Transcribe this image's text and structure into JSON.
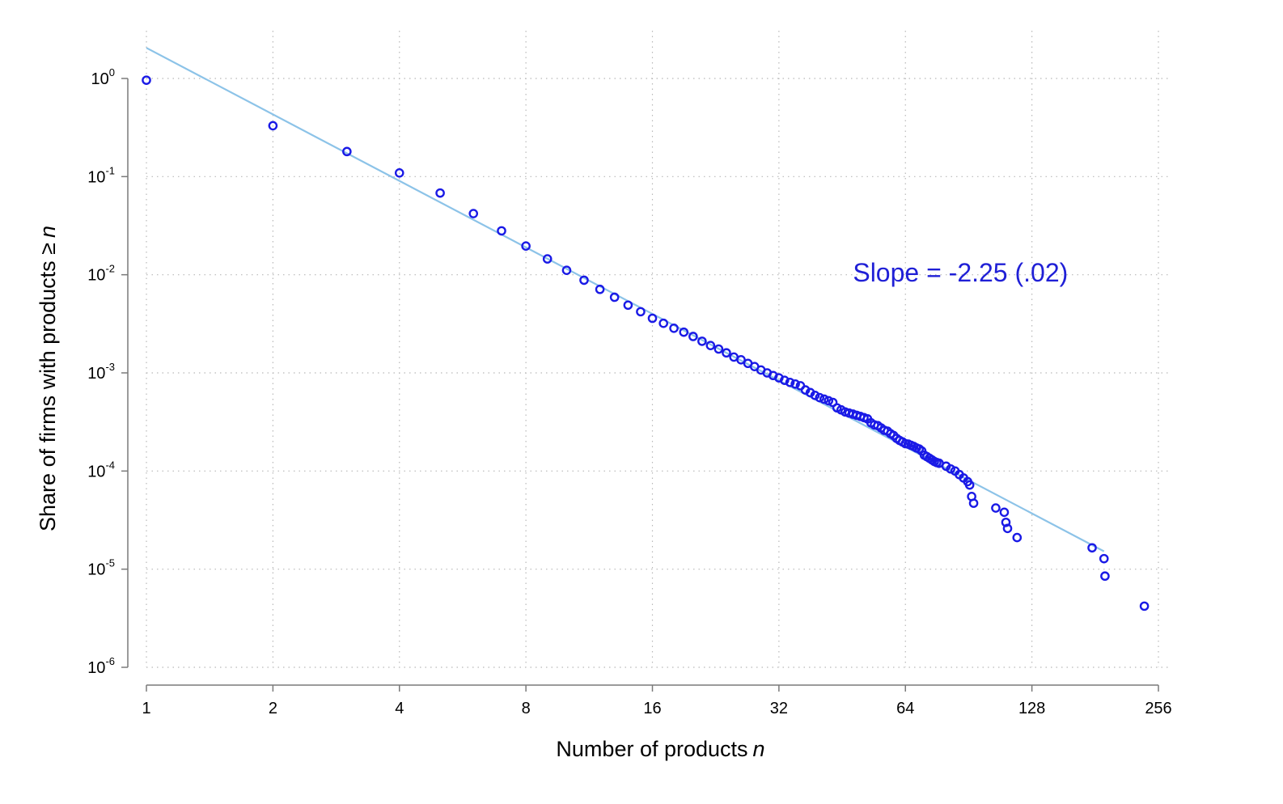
{
  "chart_data": {
    "type": "scatter",
    "xlabel": "Number of products",
    "xlabel_var": "n",
    "ylabel": "Share of firms with products ≥",
    "ylabel_var": "n",
    "x_scale": "log2",
    "y_scale": "log10",
    "xlim": [
      1,
      256
    ],
    "ylim": [
      1e-06,
      1
    ],
    "x_ticks": [
      1,
      2,
      4,
      8,
      16,
      32,
      64,
      128,
      256
    ],
    "x_tick_labels": [
      "1",
      "2",
      "4",
      "8",
      "16",
      "32",
      "64",
      "128",
      "256"
    ],
    "y_ticks": [
      1,
      0.1,
      0.01,
      0.001,
      0.0001,
      1e-05,
      1e-06
    ],
    "y_tick_labels": [
      {
        "base": "10",
        "exp": "0"
      },
      {
        "base": "10",
        "exp": "-1"
      },
      {
        "base": "10",
        "exp": "-2"
      },
      {
        "base": "10",
        "exp": "-3"
      },
      {
        "base": "10",
        "exp": "-4"
      },
      {
        "base": "10",
        "exp": "-5"
      },
      {
        "base": "10",
        "exp": "-6"
      }
    ],
    "grid": "dotted, major ticks",
    "annotation": {
      "text": "Slope = -2.25 (.02)",
      "x": 48,
      "y": 0.0085,
      "color": "#1f1fd6"
    },
    "colors": {
      "points": "#1a1ae6",
      "fit_line": "#8cc3e8",
      "axis": "#7a7a7a",
      "grid": "#b8b8b8"
    },
    "fit_line": {
      "slope": -2.25,
      "from": [
        1,
        2.05
      ],
      "to": [
        190,
        1.52e-05
      ]
    },
    "points": [
      [
        1,
        0.96
      ],
      [
        2,
        0.33
      ],
      [
        3,
        0.18
      ],
      [
        4,
        0.109
      ],
      [
        5,
        0.068
      ],
      [
        6,
        0.042
      ],
      [
        7,
        0.028
      ],
      [
        8,
        0.0196
      ],
      [
        9,
        0.0145
      ],
      [
        10,
        0.0111
      ],
      [
        11,
        0.0088
      ],
      [
        12,
        0.0071
      ],
      [
        13,
        0.0059
      ],
      [
        14,
        0.0049
      ],
      [
        15,
        0.0042
      ],
      [
        16,
        0.0036
      ],
      [
        17,
        0.0032
      ],
      [
        18,
        0.00285
      ],
      [
        19,
        0.0026
      ],
      [
        20,
        0.00235
      ],
      [
        21,
        0.0021
      ],
      [
        22,
        0.0019
      ],
      [
        23,
        0.00175
      ],
      [
        24,
        0.0016
      ],
      [
        25,
        0.00145
      ],
      [
        26,
        0.00136
      ],
      [
        27,
        0.00125
      ],
      [
        28,
        0.00116
      ],
      [
        29,
        0.00107
      ],
      [
        30,
        0.001
      ],
      [
        31,
        0.00094
      ],
      [
        32,
        0.00089
      ],
      [
        33,
        0.00084
      ],
      [
        34,
        0.0008
      ],
      [
        35,
        0.00077
      ],
      [
        36,
        0.00074
      ],
      [
        37,
        0.00067
      ],
      [
        38,
        0.00063
      ],
      [
        39,
        0.00059
      ],
      [
        40,
        0.00056
      ],
      [
        41,
        0.00054
      ],
      [
        42,
        0.00052
      ],
      [
        43,
        0.0005
      ],
      [
        44,
        0.00044
      ],
      [
        45,
        0.00042
      ],
      [
        46,
        0.0004
      ],
      [
        47,
        0.00039
      ],
      [
        48,
        0.00038
      ],
      [
        49,
        0.00037
      ],
      [
        50,
        0.00036
      ],
      [
        51,
        0.00035
      ],
      [
        52,
        0.00034
      ],
      [
        53,
        0.00031
      ],
      [
        54,
        0.000295
      ],
      [
        55,
        0.00029
      ],
      [
        56,
        0.000275
      ],
      [
        57,
        0.00026
      ],
      [
        58,
        0.000255
      ],
      [
        59,
        0.00024
      ],
      [
        60,
        0.00023
      ],
      [
        61,
        0.000215
      ],
      [
        62,
        0.000205
      ],
      [
        63,
        0.000198
      ],
      [
        64,
        0.00019
      ],
      [
        65,
        0.000188
      ],
      [
        66,
        0.000183
      ],
      [
        67,
        0.000178
      ],
      [
        68,
        0.000172
      ],
      [
        69,
        0.000168
      ],
      [
        70,
        0.00016
      ],
      [
        71,
        0.000145
      ],
      [
        72,
        0.00014
      ],
      [
        73,
        0.000135
      ],
      [
        74,
        0.00013
      ],
      [
        75,
        0.000125
      ],
      [
        76,
        0.000122
      ],
      [
        77,
        0.00012
      ],
      [
        80,
        0.000112
      ],
      [
        82,
        0.000105
      ],
      [
        84,
        0.0001
      ],
      [
        86,
        9.2e-05
      ],
      [
        88,
        8.5e-05
      ],
      [
        90,
        7.8e-05
      ],
      [
        91,
        7.2e-05
      ],
      [
        92,
        5.5e-05
      ],
      [
        93,
        4.7e-05
      ],
      [
        105,
        4.2e-05
      ],
      [
        110,
        3.8e-05
      ],
      [
        111,
        3e-05
      ],
      [
        112,
        2.6e-05
      ],
      [
        118,
        2.1e-05
      ],
      [
        178,
        1.65e-05
      ],
      [
        190,
        1.28e-05
      ],
      [
        191,
        8.5e-06
      ],
      [
        237,
        4.2e-06
      ]
    ]
  }
}
